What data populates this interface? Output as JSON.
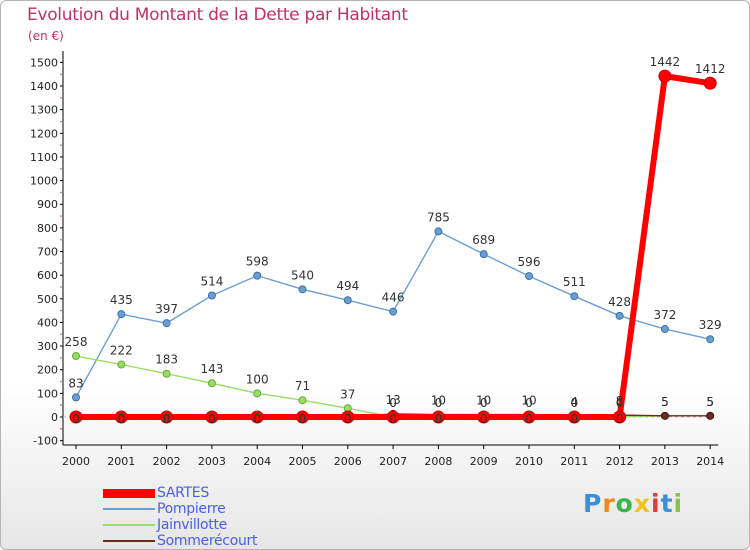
{
  "header": {
    "title": "Evolution du Montant de la Dette par Habitant",
    "subtitle": "(en €)"
  },
  "chart_data": {
    "type": "line",
    "title": "Evolution du Montant de la Dette par Habitant",
    "subtitle": "(en €)",
    "xlabel": "",
    "ylabel": "",
    "x": [
      "2000",
      "2001",
      "2002",
      "2003",
      "2004",
      "2005",
      "2006",
      "2007",
      "2008",
      "2009",
      "2010",
      "2011",
      "2012",
      "2013",
      "2014"
    ],
    "ylim": [
      -100,
      1500
    ],
    "yticks": [
      -100,
      0,
      100,
      200,
      300,
      400,
      500,
      600,
      700,
      800,
      900,
      1000,
      1100,
      1200,
      1300,
      1400,
      1500
    ],
    "grid": false,
    "legend_position": "bottom-left",
    "series": [
      {
        "name": "SARTES",
        "color": "#ff0000",
        "values": [
          0,
          0,
          0,
          0,
          0,
          0,
          0,
          0,
          0,
          0,
          0,
          0,
          0,
          1442,
          1412
        ],
        "labels": [
          "0",
          "0",
          "0",
          "0",
          "0",
          "0",
          "0",
          "0",
          "0",
          "0",
          "0",
          "0",
          "0",
          "1442",
          "1412"
        ]
      },
      {
        "name": "Pompierre",
        "color": "#6a9fd4",
        "values": [
          83,
          435,
          397,
          514,
          598,
          540,
          494,
          446,
          785,
          689,
          596,
          511,
          428,
          372,
          329
        ],
        "labels": [
          "83",
          "435",
          "397",
          "514",
          "598",
          "540",
          "494",
          "446",
          "785",
          "689",
          "596",
          "511",
          "428",
          "372",
          "329"
        ]
      },
      {
        "name": "Jainvillotte",
        "color": "#99dd66",
        "values": [
          258,
          222,
          183,
          143,
          100,
          71,
          37,
          0,
          0,
          0,
          0,
          0,
          0,
          5,
          5
        ],
        "labels": [
          "258",
          "222",
          "183",
          "143",
          "100",
          "71",
          "37",
          "0",
          "0",
          "0",
          "0",
          "0",
          "0",
          "5",
          "5"
        ]
      },
      {
        "name": "Sommerécourt",
        "color": "#6e2d1c",
        "values": [
          0,
          0,
          0,
          0,
          0,
          0,
          0,
          13,
          10,
          10,
          10,
          4,
          8,
          5,
          5
        ],
        "labels": [
          "0",
          "0",
          "0",
          "0",
          "0",
          "0",
          "0",
          "13",
          "10",
          "10",
          "10",
          "4",
          "8",
          "5",
          "5"
        ]
      }
    ]
  },
  "legend": {
    "items": [
      {
        "label": "SARTES",
        "color": "#ff0000"
      },
      {
        "label": "Pompierre",
        "color": "#6a9fd4"
      },
      {
        "label": "Jainvillotte",
        "color": "#99dd66"
      },
      {
        "label": "Sommerécourt",
        "color": "#6e2d1c"
      }
    ]
  },
  "logo": {
    "letters": [
      "P",
      "r",
      "o",
      "x",
      "i",
      "t",
      "i"
    ],
    "colors": [
      "#3a8fd8",
      "#f08a1c",
      "#3ab54a",
      "#f2c21e",
      "#e23b3b",
      "#3a8fd8",
      "#8bc34a"
    ]
  }
}
